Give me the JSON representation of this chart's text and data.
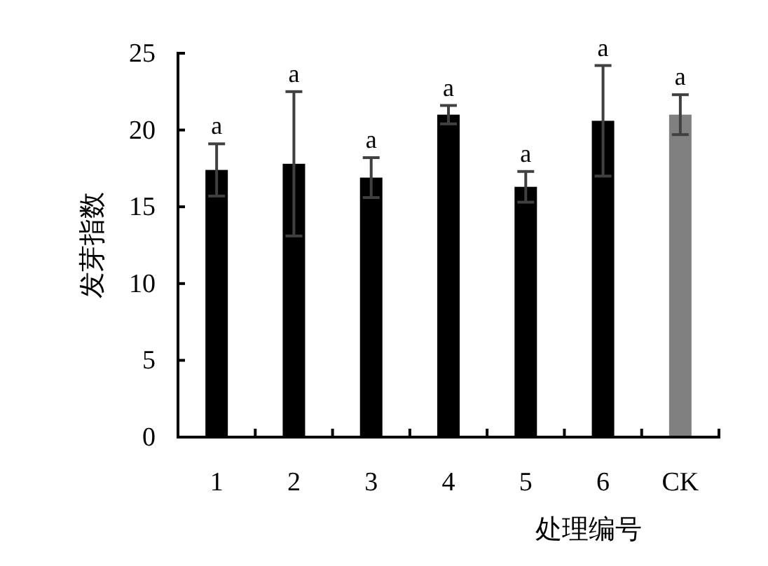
{
  "chart_data": {
    "type": "bar",
    "xlabel": "处理编号",
    "ylabel": "发芽指数",
    "categories": [
      "1",
      "2",
      "3",
      "4",
      "5",
      "6",
      "CK"
    ],
    "values": [
      17.4,
      17.8,
      16.9,
      21.0,
      16.3,
      20.6,
      21.0
    ],
    "colors": [
      "#000000",
      "#000000",
      "#000000",
      "#000000",
      "#000000",
      "#000000",
      "#808080"
    ],
    "errors": [
      1.7,
      4.7,
      1.3,
      0.6,
      1.0,
      3.6,
      1.3
    ],
    "ylim": [
      0,
      25
    ],
    "yticks": [
      0,
      5,
      10,
      15,
      20,
      25
    ],
    "grid": false,
    "annotations": [
      {
        "text": "a",
        "x": "1",
        "y": 19.1
      },
      {
        "text": "a",
        "x": "2",
        "y": 22.5
      },
      {
        "text": "a",
        "x": "3",
        "y": 18.2
      },
      {
        "text": "a",
        "x": "4",
        "y": 21.6
      },
      {
        "text": "a",
        "x": "5",
        "y": 17.3
      },
      {
        "text": "a",
        "x": "6",
        "y": 24.2
      },
      {
        "text": "a",
        "x": "CK",
        "y": 22.3
      }
    ]
  }
}
